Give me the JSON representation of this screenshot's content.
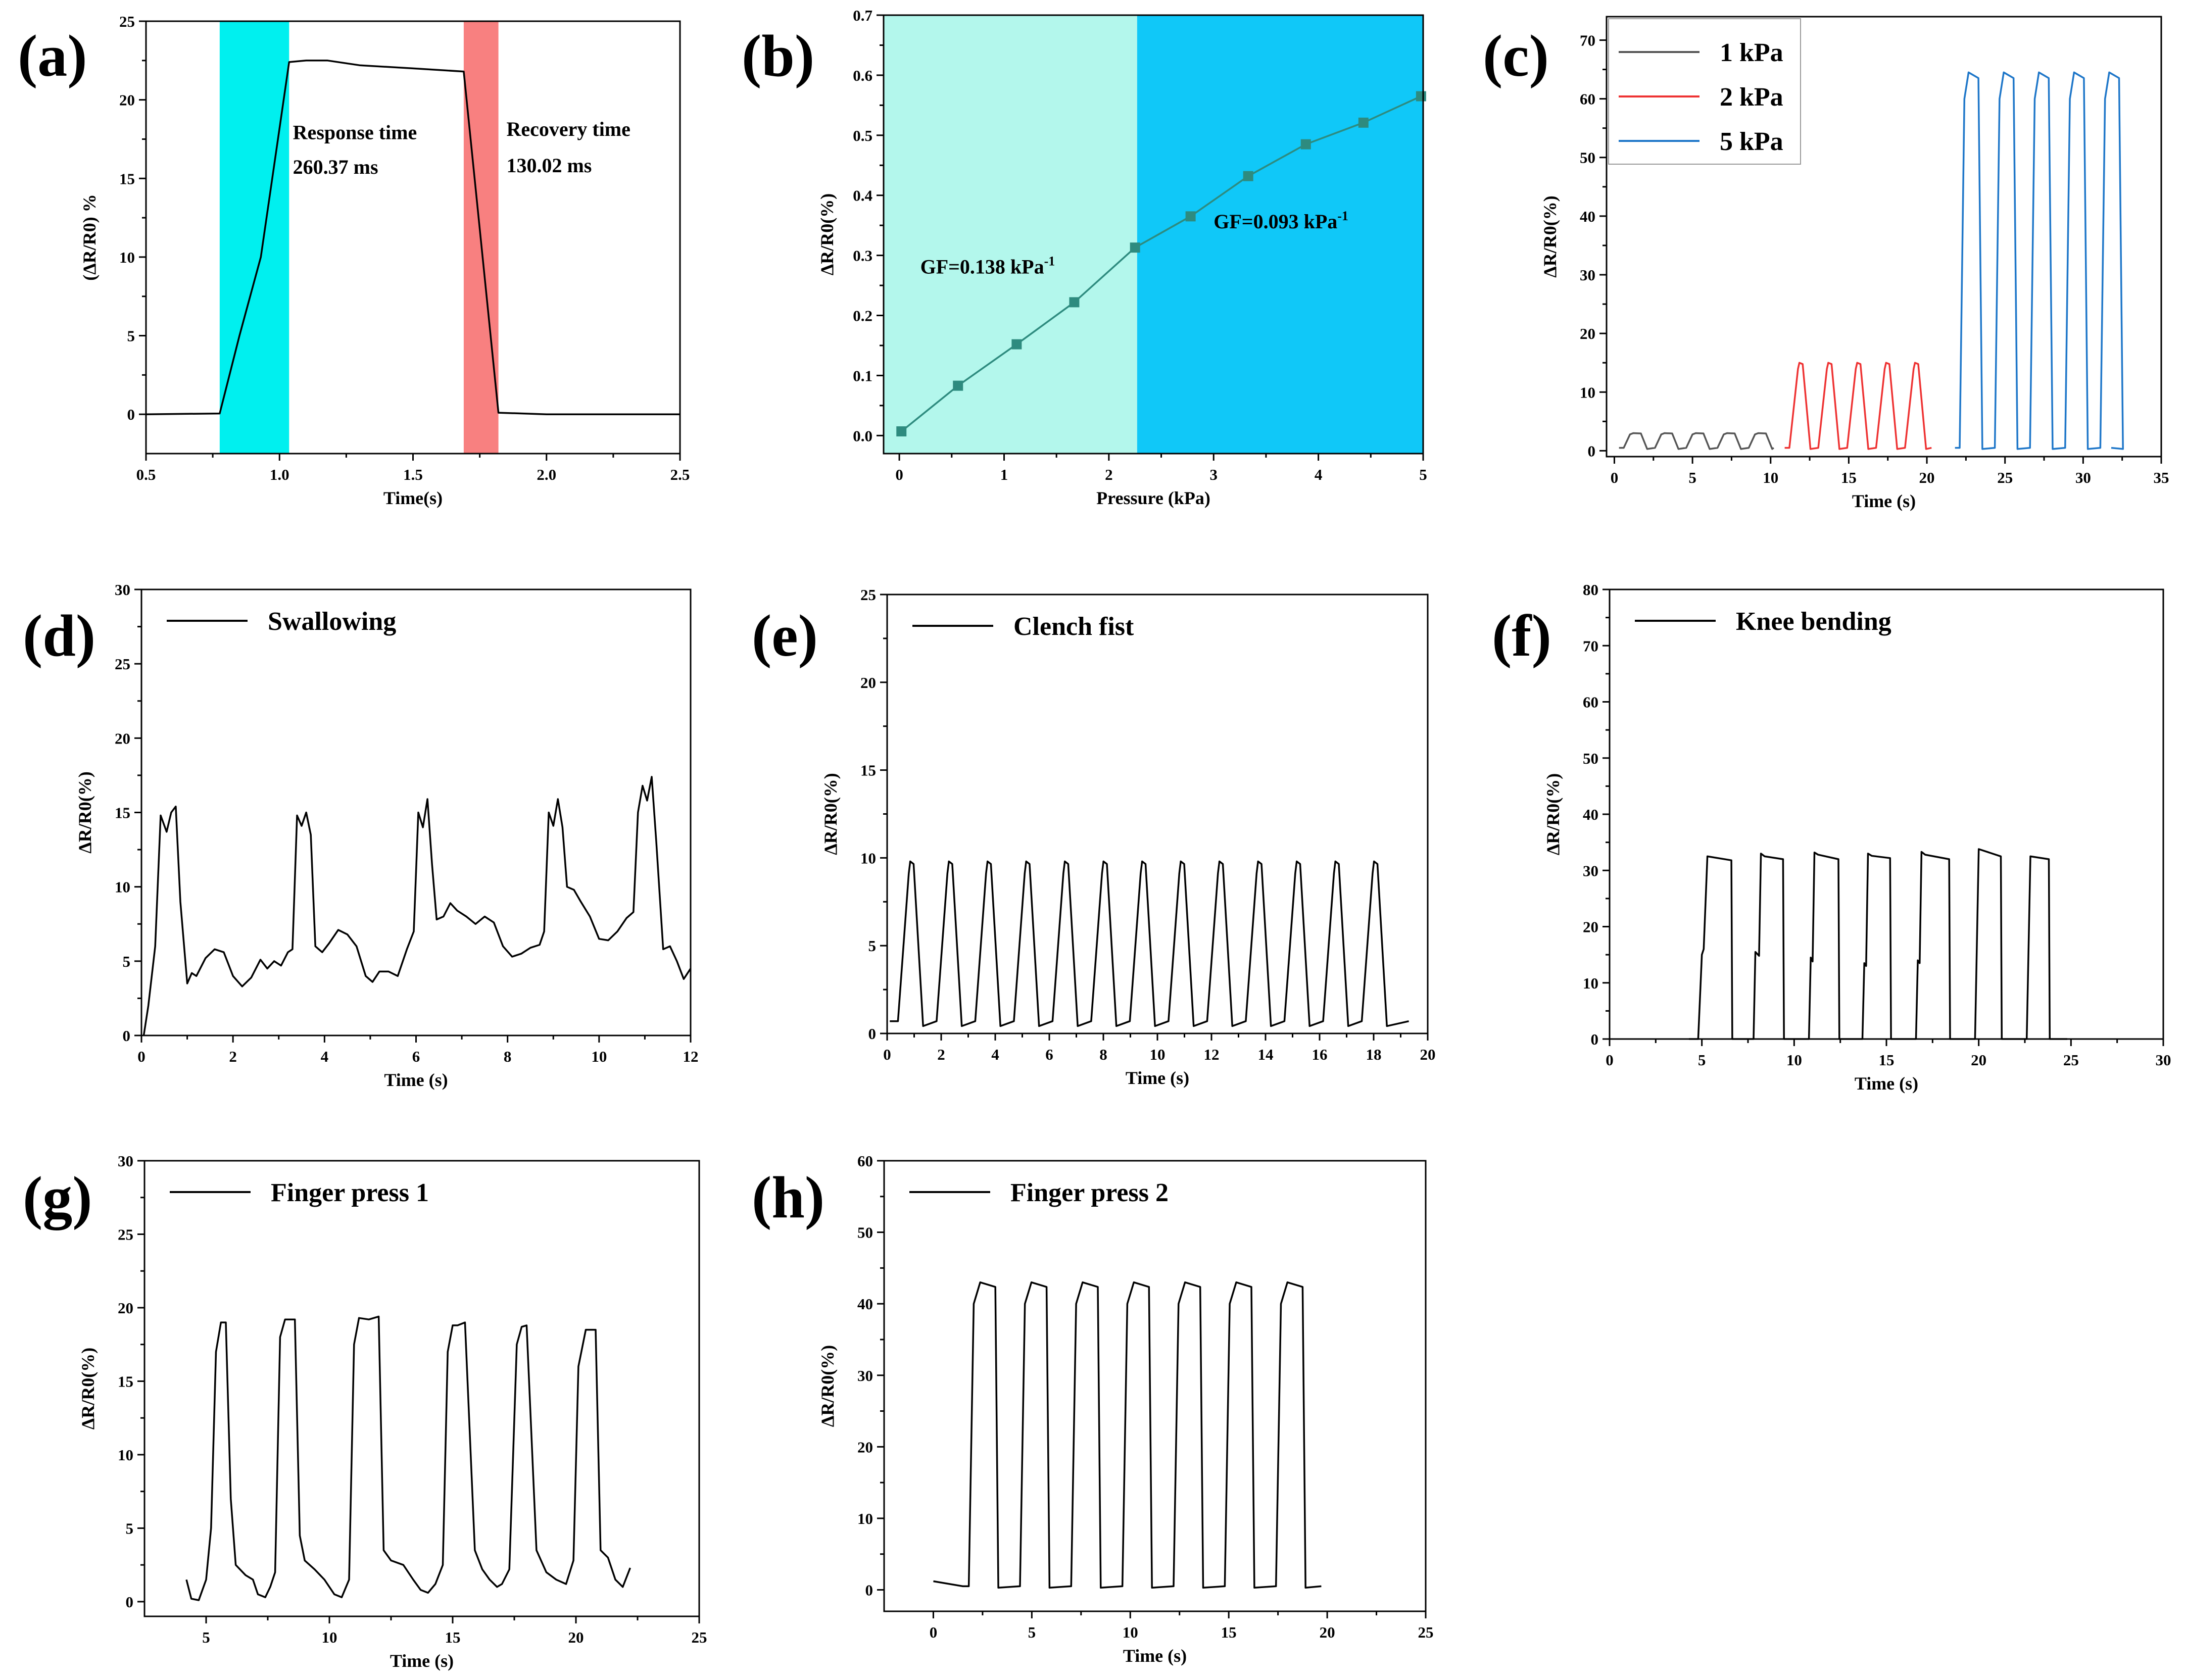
{
  "figure": {
    "panels": [
      "(a)",
      "(b)",
      "(c)",
      "(d)",
      "(e)",
      "(f)",
      "(g)",
      "(h)"
    ]
  },
  "chart_data": [
    {
      "id": "a",
      "type": "line",
      "panel_label": "(a)",
      "xlabel": "Time(s)",
      "ylabel": "(ΔR/R0) %",
      "xlim": [
        0.5,
        2.5
      ],
      "ylim": [
        -2.5,
        25
      ],
      "xticks": [
        0.5,
        1.0,
        1.5,
        2.0,
        2.5
      ],
      "xtick_labels": [
        "0.5",
        "1.0",
        "1.5",
        "2.0",
        "2.5"
      ],
      "yticks": [
        0,
        5,
        10,
        15,
        20,
        25
      ],
      "yminor": true,
      "regions": [
        {
          "x0": 0.776,
          "x1": 1.036,
          "color": "#00f0ef"
        },
        {
          "x0": 1.69,
          "x1": 1.82,
          "color": "#f88080"
        }
      ],
      "annotations": [
        {
          "text": "Response time",
          "x": 1.05,
          "y": 17.5,
          "anchor": "start"
        },
        {
          "text": "260.37 ms",
          "x": 1.05,
          "y": 15.3,
          "anchor": "start"
        },
        {
          "text": "Recovery time",
          "x": 1.85,
          "y": 17.7,
          "anchor": "start"
        },
        {
          "text": "130.02 ms",
          "x": 1.85,
          "y": 15.4,
          "anchor": "start"
        }
      ],
      "series": [
        {
          "color": "#000000",
          "x": [
            0.5,
            0.776,
            0.85,
            0.93,
            1.036,
            1.1,
            1.18,
            1.3,
            1.5,
            1.69,
            1.82,
            2.0,
            2.5
          ],
          "y": [
            0,
            0.05,
            5,
            10,
            22.4,
            22.5,
            22.5,
            22.2,
            22.0,
            21.8,
            0.1,
            0,
            0
          ]
        }
      ]
    },
    {
      "id": "b",
      "type": "line",
      "panel_label": "(b)",
      "xlabel": "Pressure (kPa)",
      "ylabel": "ΔR/R0(%)",
      "xlim": [
        -0.15,
        5
      ],
      "ylim": [
        -0.03,
        0.7
      ],
      "xticks": [
        0,
        1,
        2,
        3,
        4,
        5
      ],
      "yticks": [
        0.0,
        0.1,
        0.2,
        0.3,
        0.4,
        0.5,
        0.6,
        0.7
      ],
      "ytick_labels": [
        "0.0",
        "0.1",
        "0.2",
        "0.3",
        "0.4",
        "0.5",
        "0.6",
        "0.7"
      ],
      "yminor": true,
      "regions": [
        {
          "x0": -0.15,
          "x1": 2.27,
          "color": "#b3f7ec"
        },
        {
          "x0": 2.27,
          "x1": 5,
          "color": "#10c8f8"
        }
      ],
      "annotations": [
        {
          "text": "GF=0.138 kPa",
          "sup": "-1",
          "x": 0.2,
          "y": 0.27,
          "anchor": "start"
        },
        {
          "text": "GF=0.093 kPa",
          "sup": "-1",
          "x": 3.0,
          "y": 0.345,
          "anchor": "start"
        }
      ],
      "series": [
        {
          "color": "#2e8b7f",
          "markers": true,
          "x": [
            0.02,
            0.56,
            1.12,
            1.67,
            2.25,
            2.78,
            3.33,
            3.88,
            4.43,
            4.98
          ],
          "y": [
            0.007,
            0.083,
            0.152,
            0.222,
            0.313,
            0.365,
            0.432,
            0.485,
            0.521,
            0.565
          ]
        }
      ]
    },
    {
      "id": "c",
      "type": "line",
      "panel_label": "(c)",
      "xlabel": "Time (s)",
      "ylabel": "ΔR/R0(%)",
      "xlim": [
        -0.5,
        35
      ],
      "ylim": [
        -1,
        74
      ],
      "xticks": [
        0,
        5,
        10,
        15,
        20,
        25,
        30,
        35
      ],
      "yticks": [
        0,
        10,
        20,
        30,
        40,
        50,
        60,
        70
      ],
      "legend": [
        {
          "label": "1 kPa",
          "color": "#555555"
        },
        {
          "label": "2 kPa",
          "color": "#ee3333"
        },
        {
          "label": "5 kPa",
          "color": "#1f77c9"
        }
      ],
      "series": [
        {
          "name": "1 kPa",
          "color": "#555555",
          "pulses": {
            "start": 0.3,
            "period": 2.0,
            "count": 5,
            "rise": 0.4,
            "high": 0.7,
            "fall": 0.4,
            "amp": 3.0,
            "base": 0.5,
            "end": 10.2
          }
        },
        {
          "name": "2 kPa",
          "color": "#ee3333",
          "pulses": {
            "start": 10.9,
            "period": 1.85,
            "count": 5,
            "rise": 0.55,
            "high": 0.3,
            "fall": 0.5,
            "amp": 15.0,
            "base": 0.5,
            "end": 20.3
          }
        },
        {
          "name": "5 kPa",
          "color": "#1f77c9",
          "pulses": {
            "start": 21.8,
            "period": 2.25,
            "count": 5,
            "rise": 0.3,
            "high": 0.9,
            "fall": 0.25,
            "amp": 64.5,
            "base": 0.5,
            "end": 31.8
          }
        }
      ]
    },
    {
      "id": "d",
      "type": "line",
      "panel_label": "(d)",
      "xlabel": "Time (s)",
      "ylabel": "ΔR/R0(%)",
      "xlim": [
        0,
        12
      ],
      "ylim": [
        0,
        30
      ],
      "xticks": [
        0,
        2,
        4,
        6,
        8,
        10,
        12
      ],
      "yticks": [
        0,
        5,
        10,
        15,
        20,
        25,
        30
      ],
      "legend": [
        {
          "label": "Swallowing",
          "color": "#000000"
        }
      ],
      "series": [
        {
          "name": "Swallowing",
          "color": "#000000",
          "x": [
            0.05,
            0.15,
            0.3,
            0.42,
            0.55,
            0.65,
            0.75,
            0.85,
            1.0,
            1.1,
            1.2,
            1.4,
            1.6,
            1.8,
            2.0,
            2.2,
            2.4,
            2.6,
            2.75,
            2.9,
            3.05,
            3.2,
            3.3,
            3.4,
            3.5,
            3.6,
            3.7,
            3.8,
            3.95,
            4.1,
            4.3,
            4.5,
            4.7,
            4.9,
            5.05,
            5.2,
            5.4,
            5.6,
            5.8,
            5.95,
            6.05,
            6.15,
            6.25,
            6.35,
            6.45,
            6.6,
            6.75,
            6.9,
            7.1,
            7.3,
            7.5,
            7.7,
            7.9,
            8.1,
            8.3,
            8.5,
            8.7,
            8.8,
            8.9,
            9.0,
            9.1,
            9.2,
            9.3,
            9.45,
            9.6,
            9.8,
            10.0,
            10.2,
            10.4,
            10.6,
            10.75,
            10.85,
            10.95,
            11.05,
            11.15,
            11.25,
            11.4,
            11.55,
            11.7,
            11.85,
            12.0
          ],
          "y": [
            0,
            2,
            6,
            14.8,
            13.7,
            15.0,
            15.4,
            9,
            3.5,
            4.2,
            4.0,
            5.2,
            5.8,
            5.6,
            4.0,
            3.3,
            3.9,
            5.1,
            4.5,
            5.0,
            4.7,
            5.6,
            5.8,
            14.8,
            14.1,
            15.0,
            13.5,
            6.0,
            5.6,
            6.2,
            7.1,
            6.8,
            6.0,
            4.0,
            3.6,
            4.3,
            4.3,
            4.0,
            5.8,
            7.0,
            15.0,
            14.0,
            15.9,
            11.5,
            7.8,
            8.0,
            8.9,
            8.4,
            8.0,
            7.5,
            8.0,
            7.6,
            6.0,
            5.3,
            5.5,
            5.9,
            6.1,
            7.0,
            15.0,
            14.1,
            15.9,
            14.0,
            10.0,
            9.8,
            9.0,
            8.0,
            6.5,
            6.4,
            7.0,
            7.9,
            8.3,
            15.0,
            16.8,
            15.8,
            17.4,
            13.0,
            5.8,
            6.0,
            5.0,
            3.8,
            4.5
          ]
        }
      ]
    },
    {
      "id": "e",
      "type": "line",
      "panel_label": "(e)",
      "xlabel": "Time (s)",
      "ylabel": "ΔR/R0(%)",
      "xlim": [
        0,
        20
      ],
      "ylim": [
        0,
        25
      ],
      "xticks": [
        0,
        2,
        4,
        6,
        8,
        10,
        12,
        14,
        16,
        18,
        20
      ],
      "yticks": [
        0,
        5,
        10,
        15,
        20,
        25
      ],
      "legend": [
        {
          "label": "Clench fist",
          "color": "#000000"
        }
      ],
      "series": [
        {
          "name": "Clench fist",
          "color": "#000000",
          "pulses": {
            "start": 0.1,
            "period": 1.43,
            "count": 13,
            "rise": 0.4,
            "high": 0.18,
            "fall": 0.35,
            "amp": 9.8,
            "base": 0.7,
            "end": 19.3
          }
        }
      ]
    },
    {
      "id": "f",
      "type": "line",
      "panel_label": "(f)",
      "xlabel": "Time (s)",
      "ylabel": "ΔR/R0(%)",
      "xlim": [
        0,
        30
      ],
      "ylim": [
        0,
        80
      ],
      "xticks": [
        0,
        5,
        10,
        15,
        20,
        25,
        30
      ],
      "yticks": [
        0,
        10,
        20,
        30,
        40,
        50,
        60,
        70,
        80
      ],
      "legend": [
        {
          "label": "Knee bending",
          "color": "#000000"
        }
      ],
      "series": [
        {
          "name": "Knee bending",
          "color": "#000000",
          "x": [
            4.3,
            4.8,
            5.0,
            5.1,
            5.3,
            6.6,
            6.65,
            7.8,
            7.9,
            8.1,
            8.2,
            8.4,
            9.4,
            9.45,
            10.8,
            10.9,
            11.0,
            11.1,
            11.3,
            12.4,
            12.45,
            13.7,
            13.8,
            13.9,
            14.0,
            14.2,
            15.2,
            15.25,
            16.6,
            16.7,
            16.8,
            16.9,
            17.1,
            18.4,
            18.45,
            19.8,
            20.0,
            21.2,
            21.25,
            22.6,
            22.8,
            23.8,
            23.85,
            24.8
          ],
          "y": [
            0,
            0,
            15,
            16,
            32.5,
            31.8,
            0,
            0,
            15.5,
            14.8,
            33.0,
            32.5,
            32.0,
            0,
            0,
            14.5,
            13.8,
            33.2,
            32.8,
            32.0,
            0,
            0,
            13.5,
            13.0,
            33.0,
            32.6,
            32.2,
            0,
            0,
            14.0,
            13.5,
            33.3,
            32.8,
            32.0,
            0,
            0,
            33.8,
            32.5,
            0,
            0,
            32.5,
            32.0,
            0,
            0
          ]
        }
      ]
    },
    {
      "id": "g",
      "type": "line",
      "panel_label": "(g)",
      "xlabel": "Time (s)",
      "ylabel": "ΔR/R0(%)",
      "xlim": [
        2.5,
        25
      ],
      "ylim": [
        -1,
        30
      ],
      "xticks": [
        5,
        10,
        15,
        20,
        25
      ],
      "yticks": [
        0,
        5,
        10,
        15,
        20,
        25,
        30
      ],
      "legend": [
        {
          "label": "Finger press 1",
          "color": "#000000"
        }
      ],
      "series": [
        {
          "name": "Finger press 1",
          "color": "#000000",
          "x": [
            4.2,
            4.4,
            4.7,
            5.0,
            5.2,
            5.4,
            5.6,
            5.8,
            6.0,
            6.2,
            6.6,
            6.9,
            7.1,
            7.4,
            7.6,
            7.8,
            8.0,
            8.2,
            8.6,
            8.8,
            9.0,
            9.4,
            9.8,
            10.2,
            10.5,
            10.8,
            11.0,
            11.2,
            11.6,
            12.0,
            12.2,
            12.5,
            13.0,
            13.4,
            13.7,
            14.0,
            14.3,
            14.6,
            14.8,
            15.0,
            15.2,
            15.5,
            15.9,
            16.2,
            16.5,
            16.8,
            17.0,
            17.3,
            17.6,
            17.8,
            18.0,
            18.4,
            18.8,
            19.2,
            19.6,
            19.9,
            20.1,
            20.4,
            20.8,
            21.0,
            21.3,
            21.6,
            21.9,
            22.2
          ],
          "y": [
            1.5,
            0.2,
            0.1,
            1.5,
            5.0,
            17.0,
            19.0,
            19.0,
            7.0,
            2.5,
            1.8,
            1.5,
            0.5,
            0.3,
            1.0,
            2.0,
            18.0,
            19.2,
            19.2,
            4.5,
            2.8,
            2.2,
            1.5,
            0.5,
            0.3,
            1.5,
            17.5,
            19.3,
            19.2,
            19.4,
            3.5,
            2.8,
            2.5,
            1.5,
            0.8,
            0.6,
            1.2,
            2.5,
            17.0,
            18.8,
            18.8,
            19.0,
            3.5,
            2.2,
            1.5,
            1.0,
            1.2,
            2.2,
            17.5,
            18.7,
            18.8,
            3.5,
            2.0,
            1.5,
            1.2,
            2.8,
            16.0,
            18.5,
            18.5,
            3.5,
            3.0,
            1.5,
            1.0,
            2.3
          ]
        }
      ]
    },
    {
      "id": "h",
      "type": "line",
      "panel_label": "(h)",
      "xlabel": "Time (s)",
      "ylabel": "ΔR/R0(%)",
      "xlim": [
        -2.5,
        25
      ],
      "ylim": [
        -3,
        60
      ],
      "xticks": [
        0,
        5,
        10,
        15,
        20,
        25
      ],
      "yticks": [
        0,
        10,
        20,
        30,
        40,
        50,
        60
      ],
      "legend": [
        {
          "label": "Finger press 2",
          "color": "#000000"
        }
      ],
      "series": [
        {
          "name": "Finger press 2",
          "color": "#000000",
          "pulses": {
            "start": 0.0,
            "period": 2.6,
            "count": 7,
            "rise": 0.25,
            "high": 1.1,
            "fall": 0.15,
            "amp": 43.0,
            "base": 0.5,
            "end": 19.7,
            "lead": 1.5,
            "lead_level": 1.2
          }
        }
      ]
    }
  ]
}
